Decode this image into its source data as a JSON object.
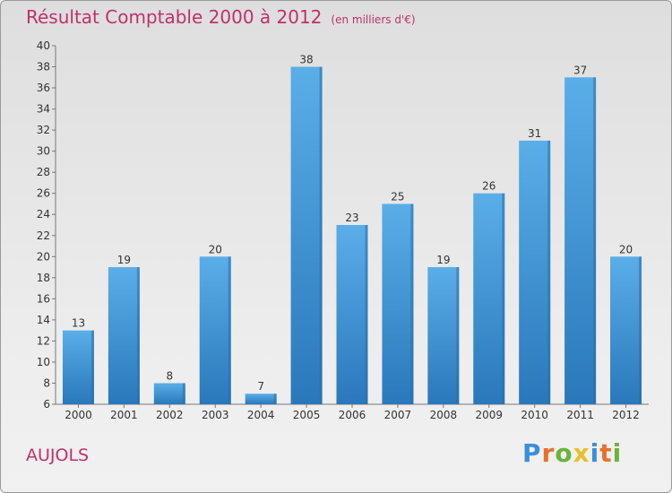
{
  "title": "Résultat Comptable 2000 à 2012",
  "title_unit": "(en milliers d'€)",
  "commune": "AUJOLS",
  "brand": {
    "text": "Proxiti",
    "letter_colors": [
      "#3a8fd8",
      "#e8702a",
      "#6bb33a",
      "#e8c02a",
      "#3a8fd8",
      "#e8702a",
      "#6bb33a"
    ]
  },
  "colors": {
    "title": "#c0306a",
    "bar": "#4a9edc",
    "bar_dark": "#2f7cbf"
  },
  "chart_data": {
    "type": "bar",
    "categories": [
      "2000",
      "2001",
      "2002",
      "2003",
      "2004",
      "2005",
      "2006",
      "2007",
      "2008",
      "2009",
      "2010",
      "2011",
      "2012"
    ],
    "values": [
      13,
      19,
      8,
      20,
      7,
      38,
      23,
      25,
      19,
      26,
      31,
      37,
      20
    ],
    "ylim": [
      6,
      40
    ],
    "yticks": [
      6,
      8,
      10,
      12,
      14,
      16,
      18,
      20,
      22,
      24,
      26,
      28,
      30,
      32,
      34,
      36,
      38,
      40
    ],
    "grid": false
  }
}
